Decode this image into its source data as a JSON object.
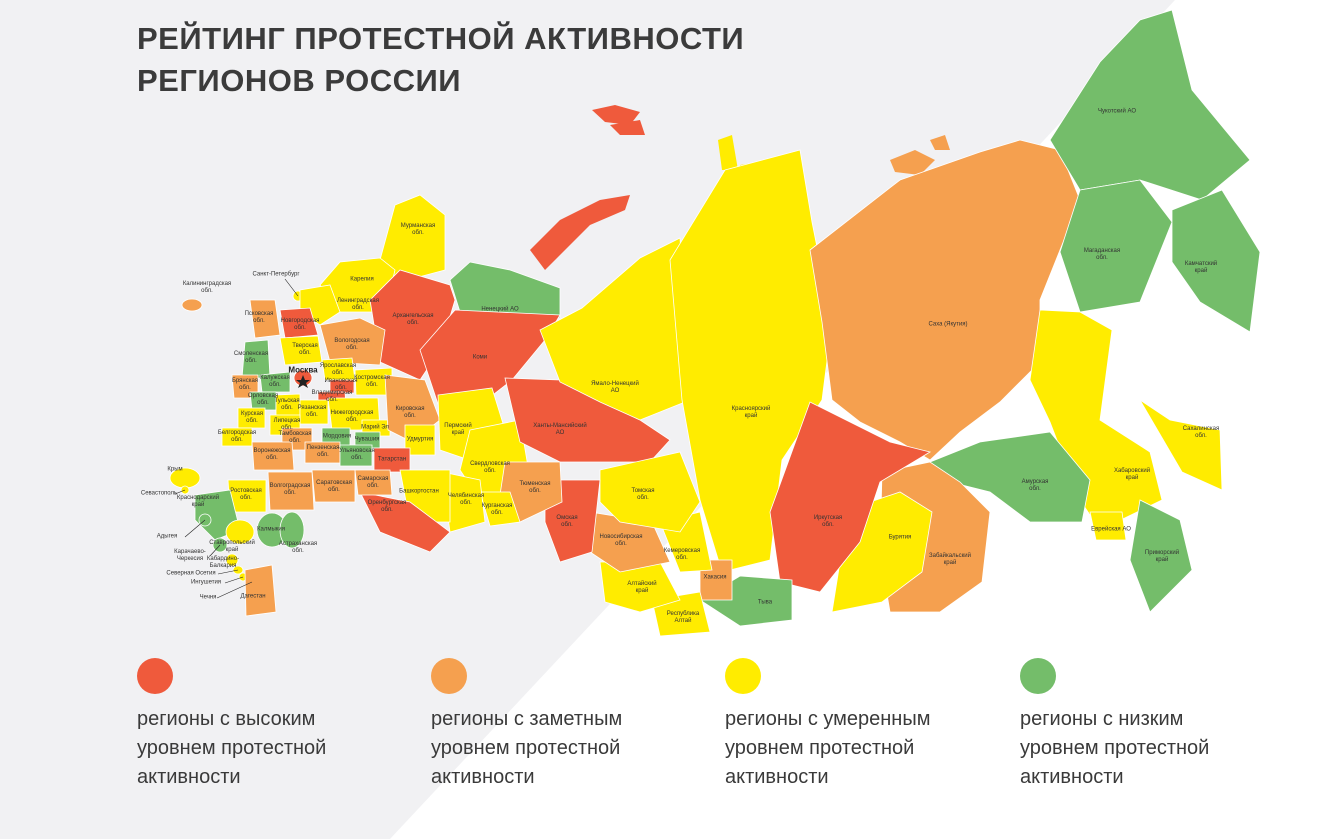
{
  "title": [
    "РЕЙТИНГ ПРОТЕСТНОЙ АКТИВНОСТИ",
    "РЕГИОНОВ РОССИИ"
  ],
  "map": {
    "regions": [
      {
        "label": "Мурманская\nобл.",
        "color": "#ffec00"
      },
      {
        "label": "Карелия",
        "color": "#ffec00"
      },
      {
        "label": "Санкт-Петербург",
        "color": "#ffec00"
      },
      {
        "label": "Ленинградская\nобл.",
        "color": "#ffec00"
      },
      {
        "label": "Калининградская\nобл.",
        "color": "#f5a04f"
      },
      {
        "label": "Псковская\nобл.",
        "color": "#f5a04f"
      },
      {
        "label": "Новгородская\nобл.",
        "color": "#ef5a3c"
      },
      {
        "label": "Архангельская\nобл.",
        "color": "#ef5a3c"
      },
      {
        "label": "Ненецкий АО",
        "color": "#74bd6a"
      },
      {
        "label": "Коми",
        "color": "#ef5a3c"
      },
      {
        "label": "Вологодская\nобл.",
        "color": "#f5a04f"
      },
      {
        "label": "Тверская\nобл.",
        "color": "#ffec00"
      },
      {
        "label": "Смоленская\nобл.",
        "color": "#74bd6a"
      },
      {
        "label": "Москва",
        "color": "#ef5a3c"
      },
      {
        "label": "Ярославская\nобл.",
        "color": "#ffec00"
      },
      {
        "label": "Костромская\nобл.",
        "color": "#ffec00"
      },
      {
        "label": "Ивановская\nобл.",
        "color": "#ef5a3c"
      },
      {
        "label": "Владимирская\nобл.",
        "color": "#ef5a3c"
      },
      {
        "label": "Брянская\nобл.",
        "color": "#f5a04f"
      },
      {
        "label": "Калужская\nобл.",
        "color": "#74bd6a"
      },
      {
        "label": "Орловская\nобл.",
        "color": "#74bd6a"
      },
      {
        "label": "Тульская\nобл.",
        "color": "#ffec00"
      },
      {
        "label": "Рязанская\nобл.",
        "color": "#ffec00"
      },
      {
        "label": "Нижегородская\nобл.",
        "color": "#ffec00"
      },
      {
        "label": "Марий Эл",
        "color": "#ffec00"
      },
      {
        "label": "Кировская\nобл.",
        "color": "#f5a04f"
      },
      {
        "label": "Курская\nобл.",
        "color": "#ffec00"
      },
      {
        "label": "Липецкая\nобл.",
        "color": "#ffec00"
      },
      {
        "label": "Тамбовская\nобл.",
        "color": "#f5a04f"
      },
      {
        "label": "Мордовия",
        "color": "#74bd6a"
      },
      {
        "label": "Чувашия",
        "color": "#74bd6a"
      },
      {
        "label": "Удмуртия",
        "color": "#ffec00"
      },
      {
        "label": "Пермский\nкрай",
        "color": "#ffec00"
      },
      {
        "label": "Белгородская\nобл.",
        "color": "#ffec00"
      },
      {
        "label": "Воронежская\nобл.",
        "color": "#f5a04f"
      },
      {
        "label": "Пензенская\nобл.",
        "color": "#f5a04f"
      },
      {
        "label": "Ульяновская\nобл.",
        "color": "#74bd6a"
      },
      {
        "label": "Татарстан",
        "color": "#ef5a3c"
      },
      {
        "label": "Свердловская\nобл.",
        "color": "#ffec00"
      },
      {
        "label": "Ханты-Мансийский\nАО",
        "color": "#ef5a3c"
      },
      {
        "label": "Ямало-Ненецкий\nАО",
        "color": "#ffec00"
      },
      {
        "label": "Красноярский\nкрай",
        "color": "#ffec00"
      },
      {
        "label": "Саха (Якутия)",
        "color": "#f5a04f"
      },
      {
        "label": "Чукотский АО",
        "color": "#74bd6a"
      },
      {
        "label": "Магаданская\nобл.",
        "color": "#74bd6a"
      },
      {
        "label": "Камчатский\nкрай",
        "color": "#74bd6a"
      },
      {
        "label": "Сахалинская\nобл.",
        "color": "#ffec00"
      },
      {
        "label": "Хабаровский\nкрай",
        "color": "#ffec00"
      },
      {
        "label": "Амурская\nобл.",
        "color": "#74bd6a"
      },
      {
        "label": "Еврейская АО",
        "color": "#ffec00"
      },
      {
        "label": "Приморский\nкрай",
        "color": "#74bd6a"
      },
      {
        "label": "Забайкальский\nкрай",
        "color": "#f5a04f"
      },
      {
        "label": "Бурятия",
        "color": "#ffec00"
      },
      {
        "label": "Иркутская\nобл.",
        "color": "#ef5a3c"
      },
      {
        "label": "Тыва",
        "color": "#74bd6a"
      },
      {
        "label": "Хакасия",
        "color": "#f5a04f"
      },
      {
        "label": "Республика\nАлтай",
        "color": "#ffec00"
      },
      {
        "label": "Алтайский\nкрай",
        "color": "#ffec00"
      },
      {
        "label": "Кемеровская\nобл.",
        "color": "#ffec00"
      },
      {
        "label": "Новосибирская\nобл.",
        "color": "#f5a04f"
      },
      {
        "label": "Томская\nобл.",
        "color": "#ffec00"
      },
      {
        "label": "Омская\nобл.",
        "color": "#ef5a3c"
      },
      {
        "label": "Тюменская\nобл.",
        "color": "#f5a04f"
      },
      {
        "label": "Курганская\nобл.",
        "color": "#ffec00"
      },
      {
        "label": "Челябинская\nобл.",
        "color": "#ffec00"
      },
      {
        "label": "Башкортостан",
        "color": "#ffec00"
      },
      {
        "label": "Оренбургская\nобл.",
        "color": "#ef5a3c"
      },
      {
        "label": "Самарская\nобл.",
        "color": "#f5a04f"
      },
      {
        "label": "Саратовская\nобл.",
        "color": "#f5a04f"
      },
      {
        "label": "Волгоградская\nобл.",
        "color": "#f5a04f"
      },
      {
        "label": "Ростовская\nобл.",
        "color": "#ffec00"
      },
      {
        "label": "Крым",
        "color": "#ffec00"
      },
      {
        "label": "Севастополь",
        "color": "#ffec00"
      },
      {
        "label": "Краснодарский\nкрай",
        "color": "#74bd6a"
      },
      {
        "label": "Адыгея",
        "color": "#74bd6a"
      },
      {
        "label": "Карачаево-\nЧеркесия",
        "color": "#74bd6a"
      },
      {
        "label": "Калмыкия",
        "color": "#74bd6a"
      },
      {
        "label": "Астраханская\nобл.",
        "color": "#74bd6a"
      },
      {
        "label": "Ставропольский\nкрай",
        "color": "#ffec00"
      },
      {
        "label": "Кабардино-\nБалкария",
        "color": "#ffec00"
      },
      {
        "label": "Северная Осетия",
        "color": "#ffec00"
      },
      {
        "label": "Ингушетия",
        "color": "#ffec00"
      },
      {
        "label": "Чечня",
        "color": "#ffec00"
      },
      {
        "label": "Дагестан",
        "color": "#f5a04f"
      }
    ]
  },
  "legend": [
    {
      "label": "регионы с высоким\nуровнем протестной\nактивности",
      "color": "#ef5a3c"
    },
    {
      "label": "регионы с заметным\nуровнем протестной\nактивности",
      "color": "#f5a04f"
    },
    {
      "label": "регионы с умеренным\nуровнем протестной\nактивности",
      "color": "#ffec00"
    },
    {
      "label": "регионы с низким\nуровнем протестной\nактивности",
      "color": "#74bd6a"
    }
  ]
}
